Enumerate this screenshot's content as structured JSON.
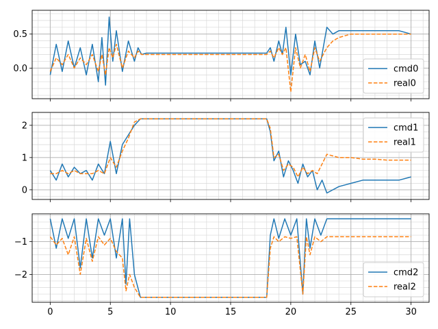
{
  "chart_data": [
    {
      "type": "line",
      "xlim": [
        -1.5,
        31.5
      ],
      "ylim": [
        -0.45,
        0.85
      ],
      "xticks": [
        0,
        5,
        10,
        15,
        20,
        25,
        30
      ],
      "xtick_labels": [
        "",
        "",
        "",
        "",
        "",
        "",
        ""
      ],
      "yticks": [
        0.0,
        0.5
      ],
      "ytick_labels": [
        "0.0",
        "0.5"
      ],
      "grid": true,
      "minor_grid": true,
      "legend_position": "lower-right",
      "series": [
        {
          "name": "cmd0",
          "style": "solid",
          "color": "#1f77b4",
          "x": [
            0,
            0.5,
            1.0,
            1.5,
            2.0,
            2.5,
            3.0,
            3.5,
            4.0,
            4.3,
            4.6,
            4.9,
            5.2,
            5.5,
            6.0,
            6.5,
            7.0,
            7.3,
            7.6,
            8,
            10,
            12,
            14,
            16,
            17.5,
            18.0,
            18.3,
            18.6,
            19.0,
            19.3,
            19.6,
            20.0,
            20.4,
            20.8,
            21.2,
            21.6,
            22.0,
            22.4,
            22.7,
            23.0,
            23.5,
            24,
            25,
            26,
            27,
            28,
            29,
            30
          ],
          "y": [
            -0.1,
            0.35,
            -0.05,
            0.4,
            0.0,
            0.3,
            -0.1,
            0.35,
            -0.2,
            0.45,
            -0.25,
            0.75,
            0.1,
            0.55,
            -0.05,
            0.4,
            0.1,
            0.3,
            0.2,
            0.22,
            0.22,
            0.22,
            0.22,
            0.22,
            0.22,
            0.22,
            0.3,
            0.1,
            0.4,
            0.2,
            0.6,
            -0.1,
            0.5,
            0.05,
            0.1,
            -0.1,
            0.4,
            0.0,
            0.3,
            0.6,
            0.5,
            0.55,
            0.55,
            0.55,
            0.55,
            0.55,
            0.55,
            0.5
          ]
        },
        {
          "name": "real0",
          "style": "dashed",
          "color": "#ff7f0e",
          "x": [
            0,
            0.5,
            1.0,
            1.5,
            2.0,
            2.5,
            3.0,
            3.5,
            4.0,
            4.3,
            4.6,
            4.9,
            5.2,
            5.5,
            6.0,
            6.5,
            7.0,
            7.3,
            7.6,
            8,
            10,
            12,
            14,
            16,
            17.5,
            18.0,
            18.3,
            18.6,
            19.0,
            19.3,
            19.6,
            20.0,
            20.4,
            20.8,
            21.2,
            21.6,
            22.0,
            22.4,
            22.7,
            23.0,
            23.5,
            24,
            25,
            26,
            27,
            28,
            29,
            30
          ],
          "y": [
            -0.05,
            0.15,
            0.05,
            0.2,
            0.0,
            0.15,
            0.05,
            0.2,
            -0.05,
            0.2,
            -0.1,
            0.3,
            0.15,
            0.35,
            0.0,
            0.25,
            0.15,
            0.25,
            0.2,
            0.2,
            0.2,
            0.2,
            0.2,
            0.2,
            0.2,
            0.2,
            0.25,
            0.15,
            0.3,
            0.2,
            0.3,
            -0.35,
            0.3,
            0.0,
            0.2,
            -0.05,
            0.3,
            0.1,
            0.2,
            0.3,
            0.4,
            0.45,
            0.5,
            0.5,
            0.5,
            0.5,
            0.5,
            0.5
          ]
        }
      ]
    },
    {
      "type": "line",
      "xlim": [
        -1.5,
        31.5
      ],
      "ylim": [
        -0.3,
        2.4
      ],
      "xticks": [
        0,
        5,
        10,
        15,
        20,
        25,
        30
      ],
      "xtick_labels": [
        "",
        "",
        "",
        "",
        "",
        "",
        ""
      ],
      "yticks": [
        0,
        1,
        2
      ],
      "ytick_labels": [
        "0",
        "1",
        "2"
      ],
      "grid": true,
      "minor_grid": true,
      "legend_position": "upper-right",
      "series": [
        {
          "name": "cmd1",
          "style": "solid",
          "color": "#1f77b4",
          "x": [
            0,
            0.5,
            1.0,
            1.5,
            2.0,
            2.5,
            3.0,
            3.5,
            4.0,
            4.5,
            5.0,
            5.5,
            6.0,
            6.5,
            7.0,
            7.5,
            8.0,
            10,
            12,
            14,
            16,
            18.0,
            18.3,
            18.6,
            19.0,
            19.4,
            19.8,
            20.2,
            20.6,
            21.0,
            21.4,
            21.8,
            22.2,
            22.6,
            23.0,
            23.5,
            24,
            25,
            26,
            27,
            28,
            29,
            30
          ],
          "y": [
            0.6,
            0.3,
            0.8,
            0.4,
            0.7,
            0.5,
            0.6,
            0.3,
            0.8,
            0.5,
            1.5,
            0.5,
            1.4,
            1.7,
            2.0,
            2.2,
            2.2,
            2.2,
            2.2,
            2.2,
            2.2,
            2.2,
            1.8,
            0.9,
            1.2,
            0.4,
            0.9,
            0.6,
            0.2,
            0.8,
            0.4,
            0.6,
            0.0,
            0.3,
            -0.1,
            0.0,
            0.1,
            0.2,
            0.3,
            0.3,
            0.3,
            0.3,
            0.4
          ]
        },
        {
          "name": "real1",
          "style": "dashed",
          "color": "#ff7f0e",
          "x": [
            0,
            0.5,
            1.0,
            1.5,
            2.0,
            2.5,
            3.0,
            3.5,
            4.0,
            4.5,
            5.0,
            5.5,
            6.0,
            6.5,
            7.0,
            7.5,
            8.0,
            10,
            12,
            14,
            16,
            18.0,
            18.3,
            18.6,
            19.0,
            19.4,
            19.8,
            20.2,
            20.6,
            21.0,
            21.4,
            21.8,
            22.2,
            22.6,
            23.0,
            23.5,
            24,
            25,
            26,
            27,
            28,
            29,
            30
          ],
          "y": [
            0.5,
            0.5,
            0.6,
            0.5,
            0.6,
            0.5,
            0.5,
            0.5,
            0.6,
            0.5,
            1.0,
            0.7,
            1.2,
            1.6,
            2.1,
            2.2,
            2.2,
            2.2,
            2.2,
            2.2,
            2.2,
            2.2,
            1.9,
            1.0,
            1.1,
            0.6,
            0.8,
            0.7,
            0.4,
            0.7,
            0.5,
            0.6,
            0.5,
            0.8,
            1.1,
            1.05,
            1.0,
            1.0,
            0.95,
            0.95,
            0.92,
            0.92,
            0.92
          ]
        }
      ]
    },
    {
      "type": "line",
      "xlim": [
        -1.5,
        31.5
      ],
      "ylim": [
        -2.85,
        -0.15
      ],
      "xticks": [
        0,
        5,
        10,
        15,
        20,
        25,
        30
      ],
      "xtick_labels": [
        "0",
        "5",
        "10",
        "15",
        "20",
        "25",
        "30"
      ],
      "yticks": [
        -2,
        -1
      ],
      "ytick_labels": [
        "−2",
        "−1"
      ],
      "grid": true,
      "minor_grid": true,
      "legend_position": "lower-right",
      "series": [
        {
          "name": "cmd2",
          "style": "solid",
          "color": "#1f77b4",
          "x": [
            0,
            0.5,
            1.0,
            1.5,
            2.0,
            2.5,
            3.0,
            3.5,
            4.0,
            4.5,
            5.0,
            5.5,
            6.0,
            6.3,
            6.6,
            7.0,
            7.5,
            8,
            10,
            12,
            14,
            16,
            18.0,
            18.3,
            18.6,
            19.0,
            19.5,
            20.0,
            20.5,
            21.0,
            21.3,
            21.6,
            22.0,
            22.5,
            23,
            25,
            27,
            30
          ],
          "y": [
            -0.3,
            -1.2,
            -0.3,
            -0.9,
            -0.3,
            -1.8,
            -0.3,
            -1.5,
            -0.3,
            -0.8,
            -0.3,
            -1.5,
            -0.3,
            -2.3,
            -0.3,
            -2.0,
            -2.7,
            -2.7,
            -2.7,
            -2.7,
            -2.7,
            -2.7,
            -2.7,
            -0.8,
            -0.3,
            -0.9,
            -0.3,
            -0.8,
            -0.3,
            -2.6,
            -0.3,
            -1.2,
            -0.3,
            -0.8,
            -0.3,
            -0.3,
            -0.3,
            -0.3
          ]
        },
        {
          "name": "real2",
          "style": "dashed",
          "color": "#ff7f0e",
          "x": [
            0,
            0.5,
            1.0,
            1.5,
            2.0,
            2.5,
            3.0,
            3.5,
            4.0,
            4.5,
            5.0,
            5.5,
            6.0,
            6.3,
            6.6,
            7.0,
            7.5,
            8,
            10,
            12,
            14,
            16,
            18.0,
            18.3,
            18.6,
            19.0,
            19.5,
            20.0,
            20.5,
            21.0,
            21.3,
            21.6,
            22.0,
            22.5,
            23,
            25,
            27,
            30
          ],
          "y": [
            -0.85,
            -1.1,
            -0.9,
            -1.4,
            -0.85,
            -2.0,
            -0.9,
            -1.6,
            -0.85,
            -1.1,
            -0.9,
            -1.3,
            -1.5,
            -2.5,
            -2.0,
            -2.4,
            -2.7,
            -2.7,
            -2.7,
            -2.7,
            -2.7,
            -2.7,
            -2.7,
            -1.2,
            -0.85,
            -1.0,
            -0.85,
            -0.9,
            -0.85,
            -2.6,
            -0.85,
            -1.4,
            -0.85,
            -1.0,
            -0.85,
            -0.85,
            -0.85,
            -0.85
          ]
        }
      ]
    }
  ]
}
